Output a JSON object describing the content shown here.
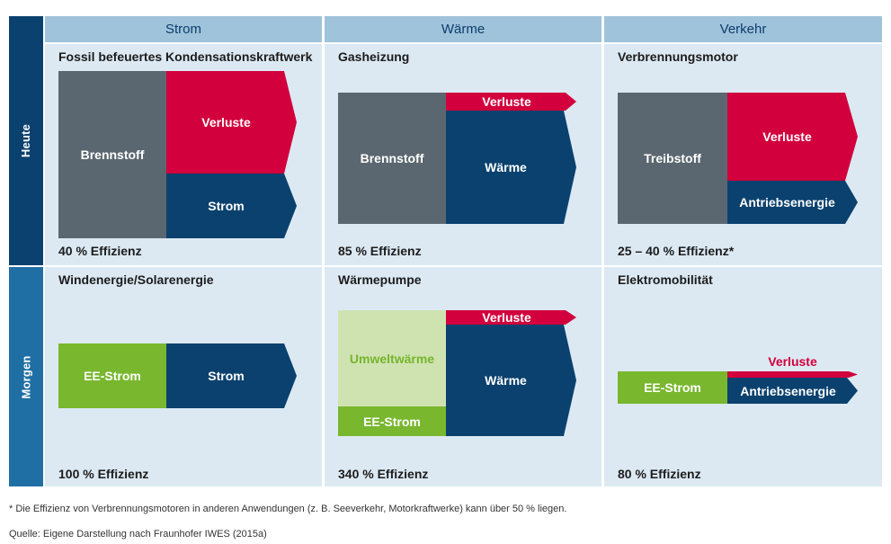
{
  "columns": [
    "Strom",
    "Wärme",
    "Verkehr"
  ],
  "rows": [
    "Heute",
    "Morgen"
  ],
  "cells": {
    "heute_strom": {
      "title": "Fossil befeuertes Kondensationskraftwerk",
      "input": "Brennstoff",
      "loss": "Verluste",
      "output": "Strom",
      "efficiency": "40 % Effizienz"
    },
    "heute_waerme": {
      "title": "Gasheizung",
      "input": "Brennstoff",
      "loss": "Verluste",
      "output": "Wärme",
      "efficiency": "85 % Effizienz"
    },
    "heute_verkehr": {
      "title": "Verbrennungsmotor",
      "input": "Treibstoff",
      "loss": "Verluste",
      "output": "Antriebsenergie",
      "efficiency": "25 – 40 % Effizienz*"
    },
    "morgen_strom": {
      "title": "Windenergie/Solarenergie",
      "input": "EE-Strom",
      "output": "Strom",
      "efficiency": "100 % Effizienz"
    },
    "morgen_waerme": {
      "title": "Wärmepumpe",
      "input_env": "Umweltwärme",
      "input": "EE-Strom",
      "loss": "Verluste",
      "output": "Wärme",
      "efficiency": "340 % Effizienz"
    },
    "morgen_verkehr": {
      "title": "Elektromobilität",
      "input": "EE-Strom",
      "loss": "Verluste",
      "output": "Antriebsenergie",
      "efficiency": "80 % Effizienz"
    }
  },
  "footnote": "* Die Effizienz von Verbrennungsmotoren in anderen Anwendungen (z. B. Seeverkehr, Motorkraftwerke) kann über 50 % liegen.",
  "source": "Quelle: Eigene Darstellung nach Fraunhofer IWES (2015a)",
  "colors": {
    "header": "#9fc3da",
    "cell_bg": "#dce9f3",
    "row_heute": "#0b416e",
    "row_morgen": "#1f6fa5",
    "fuel": "#5b6770",
    "loss": "#d2003c",
    "useful": "#0b416e",
    "renewable": "#78b72e",
    "ambient": "#cfe3b1"
  }
}
